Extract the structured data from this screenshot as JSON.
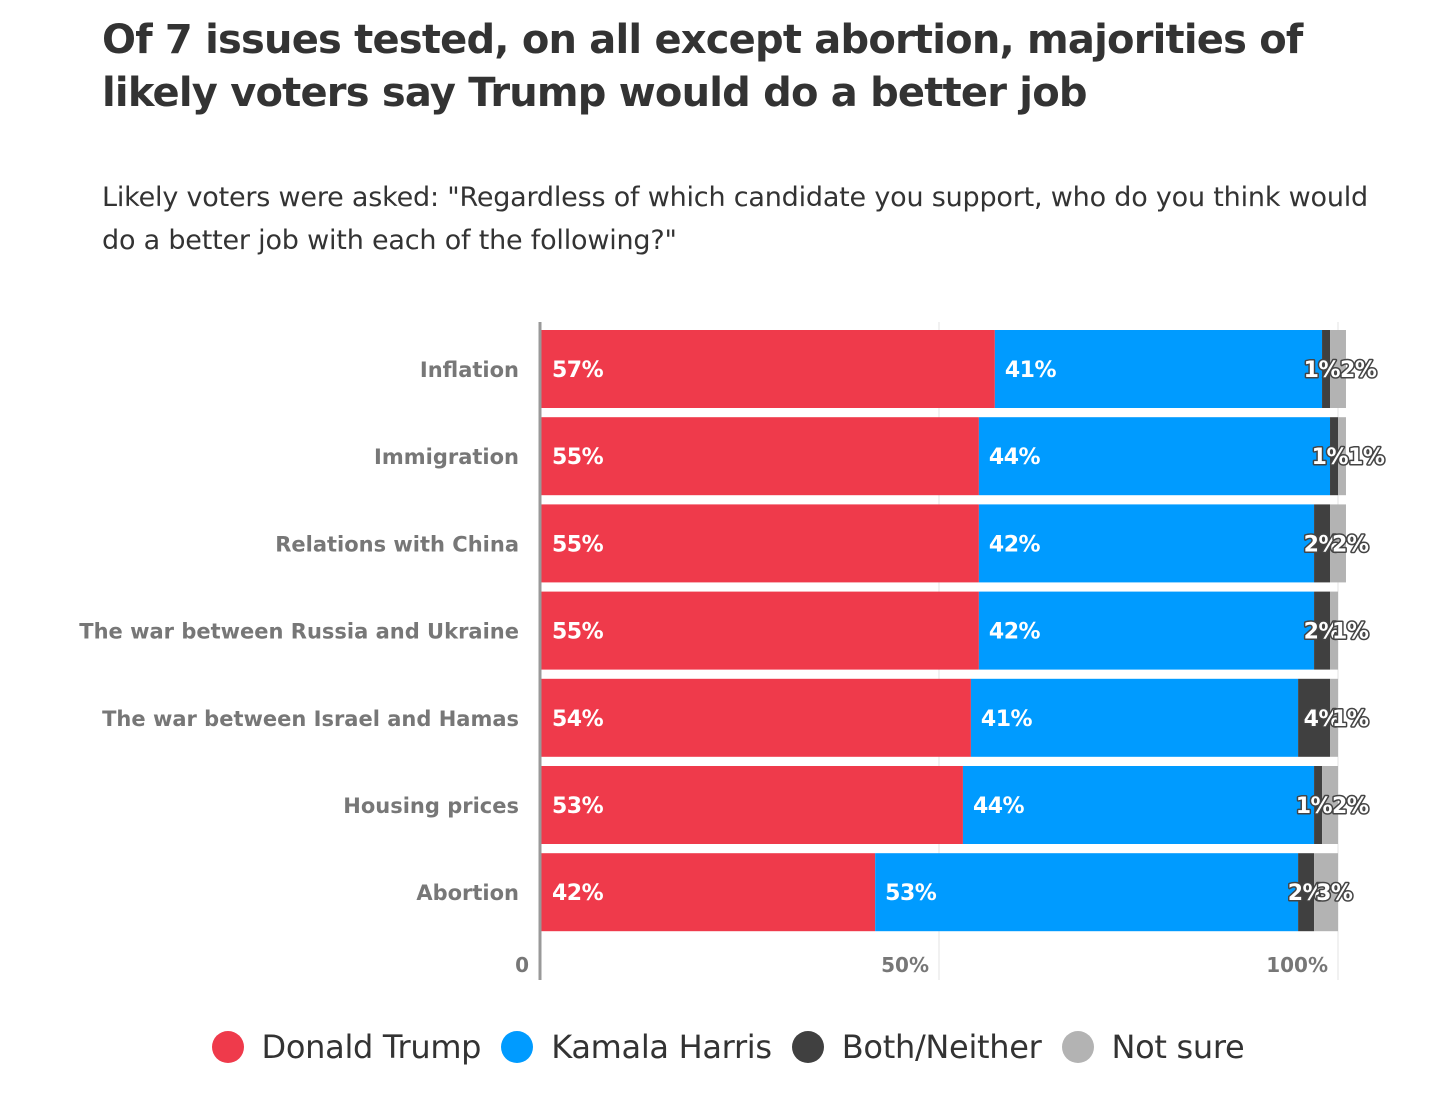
{
  "title": "Of 7 issues tested, on all except abortion, majorities of likely voters say Trump would do a better job",
  "subtitle": "Likely voters were asked: \"Regardless of which candidate you support, who do you think would do a better job with each of the following?\"",
  "chart_data": {
    "type": "bar",
    "orientation": "horizontal",
    "stacked": true,
    "categories": [
      "Inflation",
      "Immigration",
      "Relations with China",
      "The war between Russia and Ukraine",
      "The war between Israel and Hamas",
      "Housing prices",
      "Abortion"
    ],
    "series": [
      {
        "name": "Donald Trump",
        "color": "#EF3A4B",
        "values": [
          57,
          55,
          55,
          55,
          54,
          53,
          42
        ],
        "labels": [
          "57%",
          "55%",
          "55%",
          "55%",
          "54%",
          "53%",
          "42%"
        ]
      },
      {
        "name": "Kamala Harris",
        "color": "#009BFF",
        "values": [
          41,
          44,
          42,
          42,
          41,
          44,
          53
        ],
        "labels": [
          "41%",
          "44%",
          "42%",
          "42%",
          "41%",
          "44%",
          "53%"
        ]
      },
      {
        "name": "Both/Neither",
        "color": "#404040",
        "values": [
          1,
          1,
          2,
          2,
          4,
          1,
          2
        ],
        "labels": [
          "1%",
          "1%",
          "2%",
          "2%",
          "4%",
          "1%",
          "2%"
        ]
      },
      {
        "name": "Not sure",
        "color": "#B3B3B3",
        "values": [
          2,
          1,
          2,
          1,
          1,
          2,
          3
        ],
        "labels": [
          "2%",
          "1%",
          "2%",
          "1%",
          "1%",
          "2%",
          "3%"
        ]
      }
    ],
    "xlim": [
      0,
      100
    ],
    "xticks": [
      0,
      50,
      100
    ],
    "xtick_labels": [
      "0",
      "50%",
      "100%"
    ],
    "grid": true,
    "legend_position": "bottom"
  }
}
